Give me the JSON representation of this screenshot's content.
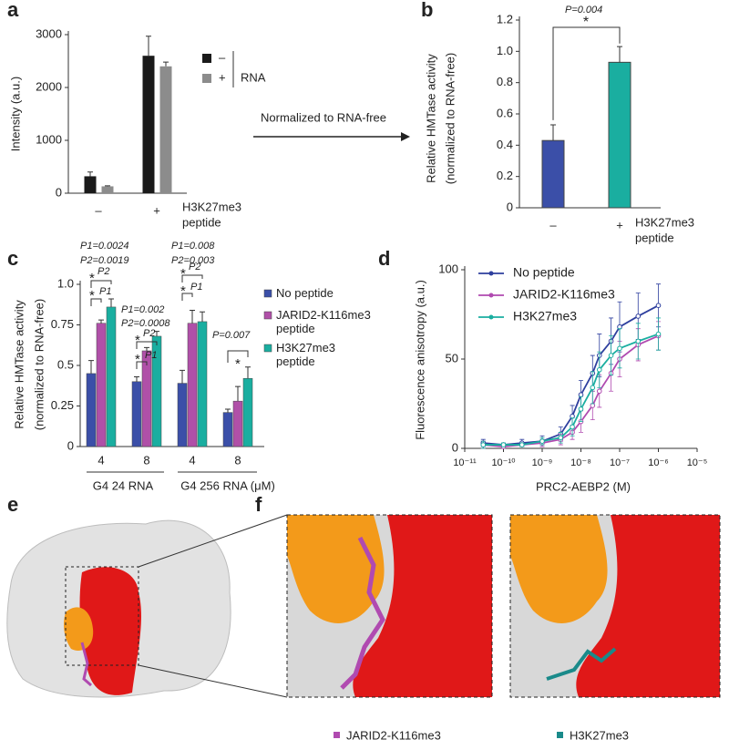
{
  "panel_labels": [
    "a",
    "b",
    "c",
    "d",
    "e",
    "f"
  ],
  "arrow_text": "Normalized to RNA-free",
  "chart_data": [
    {
      "type": "bar",
      "ylabel": "Intensity (a.u.)",
      "categories": [
        "–",
        "+"
      ],
      "category_label": [
        "H3K27me3",
        "peptide"
      ],
      "legend_title": "RNA",
      "series": [
        {
          "name": "–",
          "color": "#1a1a1a",
          "values": [
            320,
            2600
          ],
          "errors": [
            80,
            370
          ]
        },
        {
          "name": "+",
          "color": "#8c8c8c",
          "values": [
            130,
            2400
          ],
          "errors": [
            10,
            80
          ]
        }
      ],
      "ylim": [
        0,
        3000
      ],
      "yticks": [
        0,
        1000,
        2000,
        3000
      ]
    },
    {
      "type": "bar",
      "ylabel": [
        "Relative HMTase activity",
        "(normalized to RNA-free)"
      ],
      "categories": [
        "–",
        "+"
      ],
      "category_label": [
        "H3K27me3",
        "peptide"
      ],
      "values": [
        0.43,
        0.93
      ],
      "errors": [
        0.1,
        0.1
      ],
      "colors": [
        "#3b4fa8",
        "#1aaea0"
      ],
      "annotations": [
        "P=0.004",
        "*"
      ],
      "ylim": [
        0,
        1.2
      ],
      "yticks": [
        0,
        0.2,
        0.4,
        0.6,
        0.8,
        {
          "value": 1,
          "label": "1.0"
        },
        1.2
      ]
    },
    {
      "type": "bar",
      "ylabel": [
        "Relative HMTase activity",
        "(normalized to RNA-free)"
      ],
      "categories": [
        "4",
        "8",
        "4",
        "8"
      ],
      "group_labels": [
        "G4 24 RNA",
        "G4 256 RNA (μM)"
      ],
      "series": [
        {
          "name": "No peptide",
          "color": "#3b4fa8",
          "values": [
            0.45,
            0.4,
            0.39,
            0.21
          ],
          "errors": [
            0.08,
            0.03,
            0.08,
            0.02
          ]
        },
        {
          "name": "JARID2-K116me3 peptide",
          "color": "#b050a8",
          "values": [
            0.76,
            0.59,
            0.76,
            0.28
          ],
          "errors": [
            0.02,
            0.02,
            0.08,
            0.09
          ]
        },
        {
          "name": "H3K27me3 peptide",
          "color": "#1aaea0",
          "values": [
            0.86,
            0.68,
            0.77,
            0.42
          ],
          "errors": [
            0.05,
            0.03,
            0.06,
            0.07
          ]
        }
      ],
      "annotations": [
        "P1=0.0024",
        "P2=0.0019",
        "*",
        "P2",
        "*",
        "P1",
        "P1=0.002",
        "P2=0.0008",
        "*",
        "P2",
        "*",
        "P1",
        "P1=0.008",
        "P2=0.003",
        "*",
        "P2",
        "*",
        "P1",
        "P=0.007",
        "*"
      ],
      "ylim": [
        0,
        1
      ],
      "yticks": [
        0,
        0.25,
        0.5,
        0.75,
        {
          "value": 1,
          "label": "1.0"
        }
      ]
    },
    {
      "type": "line",
      "log_x": true,
      "xlabel": "PRC2-AEBP2 (M)",
      "ylabel": "Fluorescence anisotropy (a.u.)",
      "x": [
        3e-11,
        1e-10,
        3e-10,
        1e-09,
        3e-09,
        6e-09,
        1e-08,
        2e-08,
        3e-08,
        6e-08,
        1e-07,
        3e-07,
        1e-06
      ],
      "series": [
        {
          "name": "No peptide",
          "color": "#2e3f9e",
          "values": [
            3,
            2,
            3,
            4,
            8,
            18,
            30,
            42,
            52,
            60,
            68,
            74,
            80
          ],
          "errors": [
            2,
            1,
            2,
            3,
            4,
            6,
            8,
            10,
            12,
            13,
            14,
            13,
            12
          ]
        },
        {
          "name": "JARID2-K116me3",
          "color": "#b04ab0",
          "values": [
            2,
            1,
            2,
            3,
            5,
            9,
            15,
            24,
            32,
            42,
            50,
            58,
            63
          ],
          "errors": [
            2,
            1,
            1,
            2,
            3,
            4,
            6,
            8,
            9,
            10,
            10,
            9,
            8
          ]
        },
        {
          "name": "H3K27me3",
          "color": "#1aaea0",
          "values": [
            2,
            2,
            2,
            4,
            6,
            12,
            22,
            34,
            44,
            52,
            56,
            60,
            64
          ],
          "errors": [
            2,
            1,
            1,
            2,
            3,
            5,
            7,
            9,
            10,
            11,
            11,
            10,
            9
          ]
        }
      ],
      "xlim": [
        1e-11,
        1e-05
      ],
      "ylim": [
        0,
        100
      ],
      "yticks": [
        0,
        50,
        100
      ],
      "xticks": [
        {
          "value": 1e-11,
          "label": "10⁻¹¹"
        },
        {
          "value": 1e-10,
          "label": "10⁻¹⁰"
        },
        {
          "value": 1e-09,
          "label": "10⁻⁹"
        },
        {
          "value": 1e-08,
          "label": "10⁻⁸"
        },
        {
          "value": 1e-07,
          "label": "10⁻⁷"
        },
        {
          "value": 1e-06,
          "label": "10⁻⁶"
        },
        {
          "value": 1e-05,
          "label": "10⁻⁵"
        }
      ]
    }
  ],
  "structure_legend": [
    {
      "name": "JARID2-K116me3",
      "color": "#b04ab0"
    },
    {
      "name": "H3K27me3",
      "color": "#1a8a8a"
    }
  ]
}
